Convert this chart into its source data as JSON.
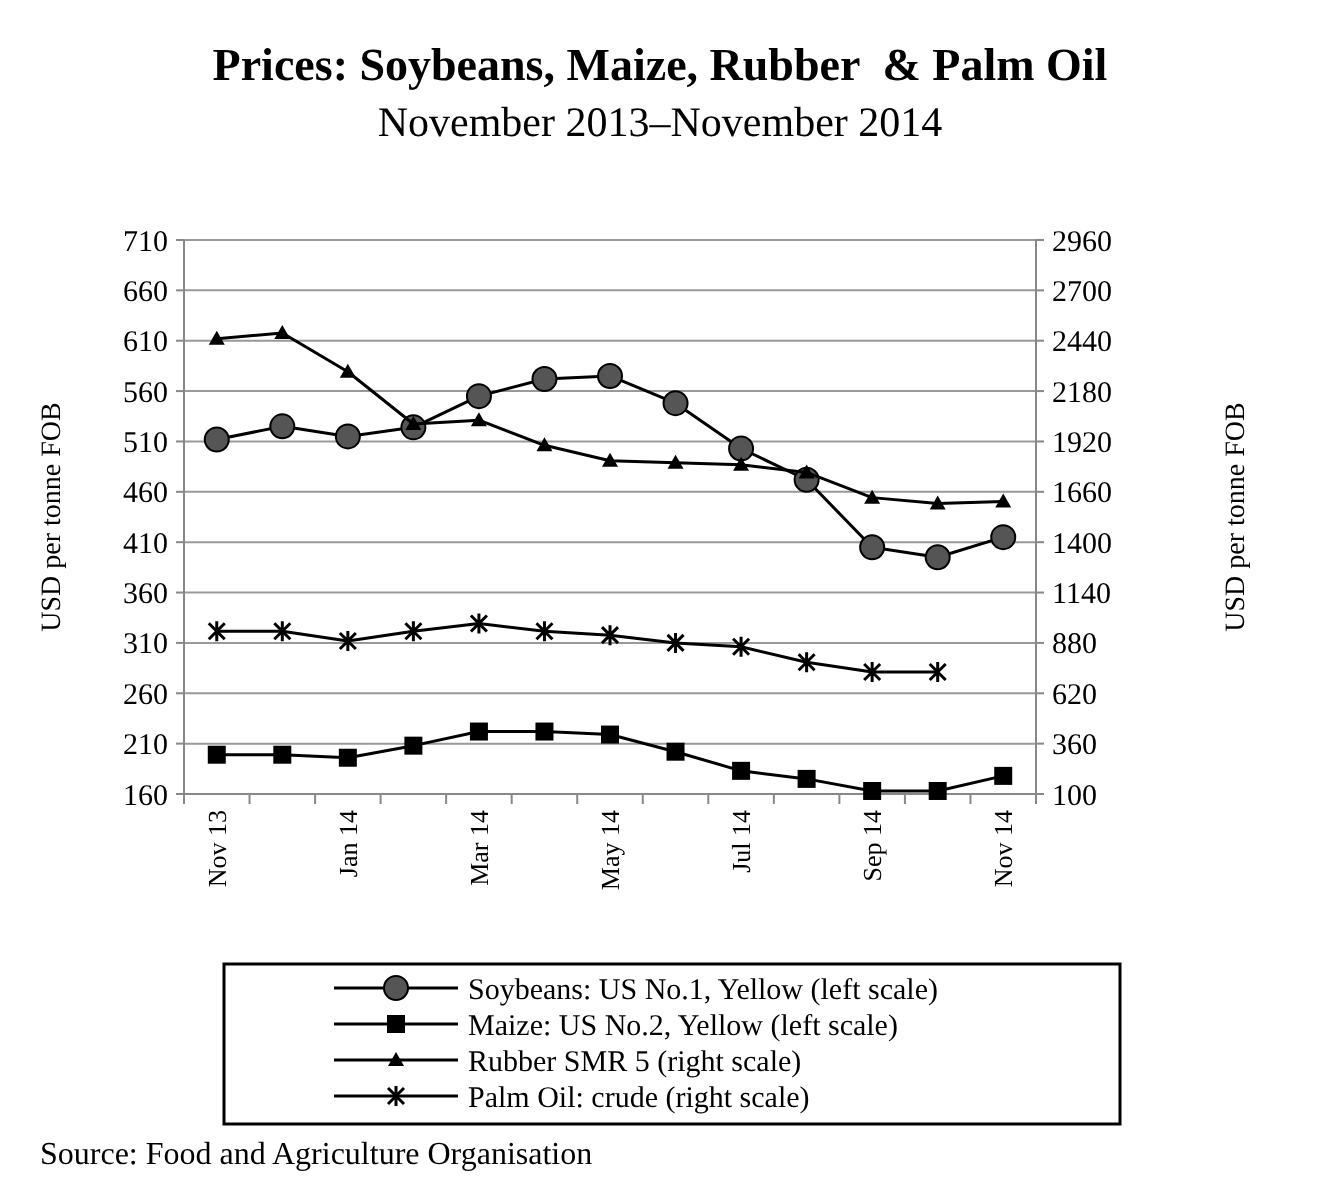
{
  "chart_data": {
    "type": "line",
    "title": "Prices: Soybeans, Maize, Rubber  & Palm Oil",
    "subtitle": "November 2013–November 2014",
    "ylabel": "USD per tonne FOB",
    "y2label": "USD per tonne FOB",
    "categories": [
      "Nov 13",
      null,
      "Jan 14",
      null,
      "Mar 14",
      null,
      "May 14",
      null,
      "Jul 14",
      null,
      "Sep 14",
      null,
      "Nov 14"
    ],
    "ylim": [
      160,
      710
    ],
    "yticks": [
      160,
      210,
      260,
      310,
      360,
      410,
      460,
      510,
      560,
      610,
      660,
      710
    ],
    "y2lim": [
      100,
      2960
    ],
    "y2ticks": [
      100,
      360,
      620,
      880,
      1140,
      1400,
      1660,
      1920,
      2180,
      2440,
      2700,
      2960
    ],
    "grid": "y",
    "legend": "bottom",
    "line_style": "solid",
    "series": [
      {
        "name": "Soybeans: US No.1, Yellow (left scale)",
        "color": "#000000",
        "marker": "circle",
        "values": [
          512,
          525,
          515,
          524,
          555,
          572,
          575,
          548,
          503,
          472,
          405,
          395,
          415
        ]
      },
      {
        "name": "Maize: US No.2, Yellow (left scale)",
        "color": "#000000",
        "marker": "square",
        "values": [
          199,
          199,
          196,
          208,
          222,
          222,
          219,
          202,
          183,
          175,
          163,
          163,
          178
        ]
      },
      {
        "name": "Rubber SMR 5 (right scale)",
        "color": "#000000",
        "marker": "triangle",
        "axis": "y2",
        "values": [
          2450,
          2480,
          2280,
          2010,
          2030,
          1900,
          1820,
          1810,
          1800,
          1760,
          1630,
          1600,
          1610
        ]
      },
      {
        "name": "Palm Oil: crude (right scale)",
        "color": "#000000",
        "marker": "cross",
        "axis": "y2",
        "values": [
          940,
          940,
          890,
          940,
          980,
          940,
          920,
          880,
          860,
          780,
          730,
          730,
          null
        ]
      }
    ],
    "annotations": [
      "Source: Food and Agriculture Organisation"
    ]
  }
}
